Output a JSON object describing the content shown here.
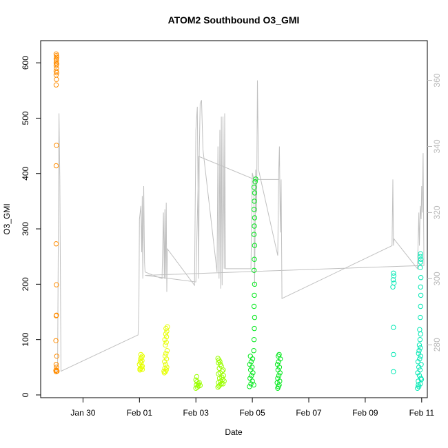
{
  "chart_data": {
    "type": "scatter",
    "title": "ATOM2 Southbound O3_GMI",
    "xlabel": "Date",
    "ylabel": "O3_GMI",
    "x_unit": "days (0 = Jan 30)",
    "xlim": [
      -1.5,
      12.2
    ],
    "ylim": [
      -5,
      640
    ],
    "y_ticks": [
      0,
      100,
      200,
      300,
      400,
      500,
      600
    ],
    "x_ticks": [
      {
        "value": 0,
        "label": "Jan 30"
      },
      {
        "value": 2,
        "label": "Feb 01"
      },
      {
        "value": 4,
        "label": "Feb 03"
      },
      {
        "value": 6,
        "label": "Feb 05"
      },
      {
        "value": 8,
        "label": "Feb 07"
      },
      {
        "value": 10,
        "label": "Feb 09"
      },
      {
        "value": 12,
        "label": "Feb 11"
      }
    ],
    "y2lim": [
      264,
      372
    ],
    "y2_ticks": [
      280,
      300,
      320,
      340,
      360
    ],
    "y2_color": "#b8b8b8",
    "grid": false,
    "series": [
      {
        "color": "#ff8c00",
        "points": [
          [
            -0.95,
            42
          ],
          [
            -0.95,
            45
          ],
          [
            -0.94,
            50
          ],
          [
            -0.95,
            55
          ],
          [
            -0.93,
            70
          ],
          [
            -0.96,
            98
          ],
          [
            -0.95,
            143
          ],
          [
            -0.94,
            144
          ],
          [
            -0.94,
            199
          ],
          [
            -0.95,
            273
          ],
          [
            -0.95,
            414
          ],
          [
            -0.94,
            451
          ],
          [
            -0.95,
            560
          ],
          [
            -0.94,
            570
          ],
          [
            -0.95,
            578
          ],
          [
            -0.93,
            582
          ],
          [
            -0.95,
            585
          ],
          [
            -0.94,
            590
          ],
          [
            -0.95,
            595
          ],
          [
            -0.93,
            598
          ],
          [
            -0.95,
            600
          ],
          [
            -0.94,
            604
          ],
          [
            -0.95,
            607
          ],
          [
            -0.93,
            610
          ],
          [
            -0.94,
            613
          ],
          [
            -0.95,
            616
          ],
          [
            -0.96,
            44
          ],
          [
            -0.92,
            43
          ]
        ]
      },
      {
        "color": "#e6ff00",
        "points": [
          [
            2.02,
            45
          ],
          [
            2.05,
            48
          ],
          [
            2.08,
            50
          ],
          [
            2.1,
            52
          ],
          [
            2.0,
            55
          ],
          [
            2.06,
            58
          ],
          [
            2.03,
            60
          ],
          [
            2.09,
            62
          ],
          [
            2.04,
            65
          ],
          [
            2.07,
            68
          ],
          [
            2.1,
            70
          ],
          [
            2.05,
            73
          ],
          [
            2.02,
            47
          ],
          [
            2.1,
            46
          ],
          [
            2.88,
            40
          ],
          [
            2.92,
            42
          ],
          [
            2.95,
            45
          ],
          [
            2.9,
            48
          ],
          [
            2.97,
            50
          ],
          [
            2.93,
            55
          ],
          [
            2.89,
            60
          ],
          [
            2.96,
            65
          ],
          [
            2.91,
            70
          ],
          [
            2.94,
            75
          ],
          [
            2.98,
            80
          ],
          [
            2.92,
            90
          ],
          [
            2.95,
            95
          ],
          [
            2.9,
            100
          ],
          [
            2.96,
            105
          ],
          [
            2.93,
            110
          ],
          [
            2.97,
            115
          ],
          [
            2.94,
            120
          ],
          [
            2.99,
            123
          ],
          [
            2.87,
            43
          ]
        ]
      },
      {
        "color": "#9aff00",
        "points": [
          [
            4.0,
            12
          ],
          [
            4.05,
            14
          ],
          [
            4.1,
            16
          ],
          [
            4.02,
            18
          ],
          [
            4.08,
            20
          ],
          [
            4.12,
            22
          ],
          [
            4.04,
            24
          ],
          [
            4.15,
            17
          ],
          [
            4.0,
            27
          ],
          [
            4.03,
            33
          ],
          [
            4.78,
            14
          ],
          [
            4.82,
            16
          ],
          [
            4.85,
            18
          ],
          [
            4.9,
            20
          ],
          [
            4.8,
            22
          ],
          [
            4.88,
            25
          ],
          [
            4.95,
            28
          ],
          [
            4.84,
            30
          ],
          [
            4.92,
            32
          ],
          [
            4.98,
            35
          ],
          [
            4.8,
            38
          ],
          [
            4.86,
            40
          ],
          [
            4.93,
            43
          ],
          [
            4.97,
            45
          ],
          [
            4.83,
            48
          ],
          [
            4.9,
            52
          ],
          [
            4.87,
            55
          ],
          [
            4.8,
            58
          ],
          [
            4.85,
            60
          ],
          [
            4.82,
            63
          ],
          [
            4.78,
            66
          ],
          [
            5.0,
            25
          ],
          [
            4.96,
            20
          ]
        ]
      },
      {
        "color": "#00e81a",
        "points": [
          [
            5.9,
            15
          ],
          [
            5.95,
            20
          ],
          [
            6.0,
            25
          ],
          [
            5.92,
            30
          ],
          [
            5.97,
            35
          ],
          [
            6.02,
            40
          ],
          [
            5.94,
            45
          ],
          [
            5.99,
            50
          ],
          [
            5.91,
            55
          ],
          [
            5.96,
            60
          ],
          [
            6.01,
            65
          ],
          [
            5.93,
            70
          ],
          [
            6.05,
            18
          ],
          [
            6.05,
            80
          ],
          [
            6.06,
            100
          ],
          [
            6.07,
            120
          ],
          [
            6.08,
            140
          ],
          [
            6.06,
            160
          ],
          [
            6.07,
            180
          ],
          [
            6.08,
            200
          ],
          [
            6.06,
            225
          ],
          [
            6.07,
            245
          ],
          [
            6.08,
            270
          ],
          [
            6.06,
            290
          ],
          [
            6.07,
            305
          ],
          [
            6.08,
            320
          ],
          [
            6.06,
            335
          ],
          [
            6.07,
            350
          ],
          [
            6.08,
            365
          ],
          [
            6.06,
            375
          ],
          [
            6.1,
            385
          ],
          [
            6.12,
            390
          ],
          [
            6.9,
            12
          ],
          [
            6.92,
            15
          ],
          [
            6.95,
            18
          ],
          [
            6.88,
            22
          ],
          [
            6.97,
            25
          ],
          [
            6.9,
            30
          ],
          [
            6.94,
            35
          ],
          [
            6.98,
            40
          ],
          [
            6.91,
            45
          ],
          [
            6.96,
            50
          ],
          [
            6.89,
            55
          ],
          [
            6.93,
            60
          ],
          [
            6.99,
            65
          ],
          [
            6.92,
            70
          ],
          [
            6.95,
            73
          ]
        ]
      },
      {
        "color": "#00e8b4",
        "points": [
          [
            11.0,
            42
          ],
          [
            11.0,
            73
          ],
          [
            11.0,
            122
          ],
          [
            10.98,
            195
          ],
          [
            11.02,
            202
          ],
          [
            10.99,
            208
          ],
          [
            11.01,
            215
          ],
          [
            11.0,
            220
          ],
          [
            11.85,
            12
          ],
          [
            11.9,
            15
          ],
          [
            11.95,
            20
          ],
          [
            11.88,
            25
          ],
          [
            11.97,
            30
          ],
          [
            11.92,
            35
          ],
          [
            11.86,
            40
          ],
          [
            11.94,
            45
          ],
          [
            11.9,
            50
          ],
          [
            11.98,
            55
          ],
          [
            11.87,
            60
          ],
          [
            11.93,
            65
          ],
          [
            11.96,
            70
          ],
          [
            11.89,
            75
          ],
          [
            11.91,
            80
          ],
          [
            11.95,
            85
          ],
          [
            11.92,
            90
          ],
          [
            11.94,
            100
          ],
          [
            11.96,
            110
          ],
          [
            11.93,
            118
          ],
          [
            11.95,
            140
          ],
          [
            11.96,
            160
          ],
          [
            11.97,
            180
          ],
          [
            11.96,
            195
          ],
          [
            11.97,
            212
          ],
          [
            11.95,
            230
          ],
          [
            11.96,
            240
          ],
          [
            11.97,
            245
          ],
          [
            11.95,
            250
          ],
          [
            11.96,
            255
          ],
          [
            11.88,
            18
          ],
          [
            11.99,
            28
          ]
        ]
      }
    ],
    "line_series": {
      "color": "#c0c0c0",
      "axis": "right",
      "points": [
        [
          -0.95,
          272
        ],
        [
          -0.9,
          274
        ],
        [
          -0.85,
          350
        ],
        [
          -0.82,
          330
        ],
        [
          -0.78,
          272
        ],
        [
          1.95,
          283
        ],
        [
          1.98,
          290
        ],
        [
          2.0,
          318
        ],
        [
          2.05,
          322
        ],
        [
          2.08,
          308
        ],
        [
          2.1,
          325
        ],
        [
          2.12,
          300
        ],
        [
          2.15,
          328
        ],
        [
          2.18,
          305
        ],
        [
          2.2,
          302
        ],
        [
          2.8,
          300
        ],
        [
          2.85,
          320
        ],
        [
          2.88,
          300
        ],
        [
          2.9,
          321
        ],
        [
          2.92,
          300
        ],
        [
          2.95,
          323
        ],
        [
          2.97,
          296
        ],
        [
          2.99,
          309
        ],
        [
          3.95,
          298
        ],
        [
          4.0,
          345
        ],
        [
          4.05,
          352
        ],
        [
          4.1,
          300
        ],
        [
          4.12,
          338
        ],
        [
          4.15,
          353
        ],
        [
          4.2,
          354
        ],
        [
          4.25,
          339
        ],
        [
          4.75,
          302
        ],
        [
          4.78,
          340
        ],
        [
          4.82,
          300
        ],
        [
          4.85,
          345
        ],
        [
          4.88,
          297
        ],
        [
          4.9,
          349
        ],
        [
          4.93,
          298
        ],
        [
          4.96,
          349
        ],
        [
          5.0,
          303
        ],
        [
          5.02,
          350
        ],
        [
          5.05,
          303
        ],
        [
          5.95,
          303
        ],
        [
          6.0,
          332
        ],
        [
          6.05,
          330
        ],
        [
          6.08,
          298
        ],
        [
          6.12,
          333
        ],
        [
          6.15,
          320
        ],
        [
          6.18,
          360
        ],
        [
          6.22,
          333
        ],
        [
          6.9,
          307
        ],
        [
          6.93,
          331
        ],
        [
          6.96,
          340
        ],
        [
          6.99,
          314
        ],
        [
          7.02,
          330
        ],
        [
          7.05,
          294
        ],
        [
          10.95,
          310
        ],
        [
          10.98,
          330
        ],
        [
          11.0,
          310
        ],
        [
          11.02,
          312
        ],
        [
          11.85,
          303
        ],
        [
          11.9,
          320
        ],
        [
          11.92,
          310
        ],
        [
          11.95,
          322
        ],
        [
          11.98,
          318
        ],
        [
          12.0,
          328
        ],
        [
          12.02,
          320
        ],
        [
          12.05,
          338
        ],
        [
          12.08,
          304
        ],
        [
          2.2,
          301
        ],
        [
          4.0,
          299
        ],
        [
          4.1,
          337
        ],
        [
          6.08,
          330
        ],
        [
          6.95,
          330
        ]
      ]
    }
  }
}
